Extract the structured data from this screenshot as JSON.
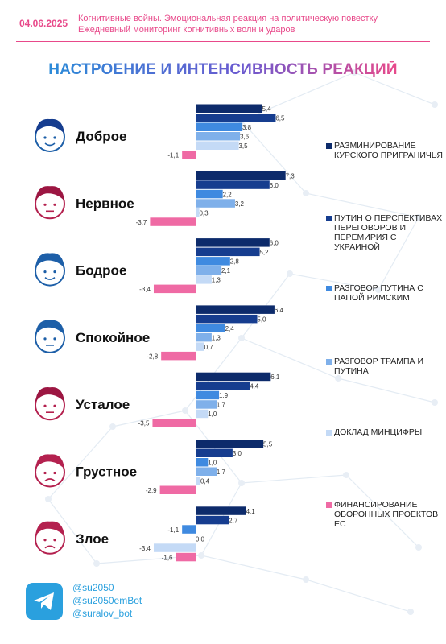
{
  "header": {
    "date": "04.06.2025",
    "subtitle_line1": "Когнитивные войны. Эмоциональная реакция на политическую повестку",
    "subtitle_line2": "Ежедневный мониторинг когнитивных волн и ударов"
  },
  "colors": {
    "accent": "#e8498a",
    "series": [
      "#0d2b6b",
      "#163d8f",
      "#3f8ae0",
      "#7fb0ea",
      "#c4daf6",
      "#ef6aa4"
    ]
  },
  "chart_data": {
    "type": "bar",
    "orientation": "horizontal",
    "title": "НАСТРОЕНИЕ И ИНТЕНСИВНОСТЬ РЕАКЦИЙ",
    "categories": [
      "Доброе",
      "Нервное",
      "Бодрое",
      "Спокойное",
      "Усталое",
      "Грустное",
      "Злое"
    ],
    "category_icons": [
      "smiling-face-icon",
      "nervous-face-icon",
      "cheerful-face-icon",
      "calm-face-icon",
      "tired-face-icon",
      "sad-face-icon",
      "angry-face-icon"
    ],
    "series": [
      {
        "name": "РАЗМИНИРОВАНИЕ КУРСКОГО ПРИГРАНИЧЬЯ",
        "values": [
          5.4,
          7.3,
          6.0,
          6.4,
          6.1,
          5.5,
          4.1
        ]
      },
      {
        "name": "ПУТИН О ПЕРСПЕКТИВАХ ПЕРЕГОВОРОВ И ПЕРЕМИРИЯ С УКРАИНОЙ",
        "values": [
          6.5,
          6.0,
          5.2,
          5.0,
          4.4,
          3.0,
          2.7
        ]
      },
      {
        "name": "РАЗГОВОР ПУТИНА С ПАПОЙ РИМСКИМ",
        "values": [
          3.8,
          2.2,
          2.8,
          2.4,
          1.9,
          1.0,
          -1.1
        ]
      },
      {
        "name": "РАЗГОВОР ТРАМПА И ПУТИНА",
        "values": [
          3.6,
          3.2,
          2.1,
          1.3,
          1.7,
          1.7,
          0.0
        ]
      },
      {
        "name": "ДОКЛАД МИНЦИФРЫ",
        "values": [
          3.5,
          0.3,
          1.3,
          0.7,
          1.0,
          0.4,
          -3.4
        ]
      },
      {
        "name": "ФИНАНСИРОВАНИЕ ОБОРОННЫХ ПРОЕКТОВ ЕС",
        "values": [
          -1.1,
          -3.7,
          -3.4,
          -2.8,
          -3.5,
          -2.9,
          -1.6
        ]
      }
    ],
    "value_labels": [
      [
        "5,4",
        "6,5",
        "3,8",
        "3,6",
        "3,5",
        "-1,1"
      ],
      [
        "7,3",
        "6,0",
        "2,2",
        "3,2",
        "0,3",
        "-3,7"
      ],
      [
        "6,0",
        "5,2",
        "2,8",
        "2,1",
        "1,3",
        "-3,4"
      ],
      [
        "6,4",
        "5,0",
        "2,4",
        "1,3",
        "0,7",
        "-2,8"
      ],
      [
        "6,1",
        "4,4",
        "1,9",
        "1,7",
        "1,0",
        "-3,5"
      ],
      [
        "5,5",
        "3,0",
        "1,0",
        "1,7",
        "0,4",
        "-2,9"
      ],
      [
        "4,1",
        "2,7",
        "-1,1",
        "0,0",
        "-3,4",
        "-1,6"
      ]
    ],
    "legend_position": "right",
    "grid": false
  },
  "footer": {
    "icon": "telegram-icon",
    "handles": [
      "@su2050",
      "@su2050emBot",
      "@suralov_bot"
    ]
  }
}
